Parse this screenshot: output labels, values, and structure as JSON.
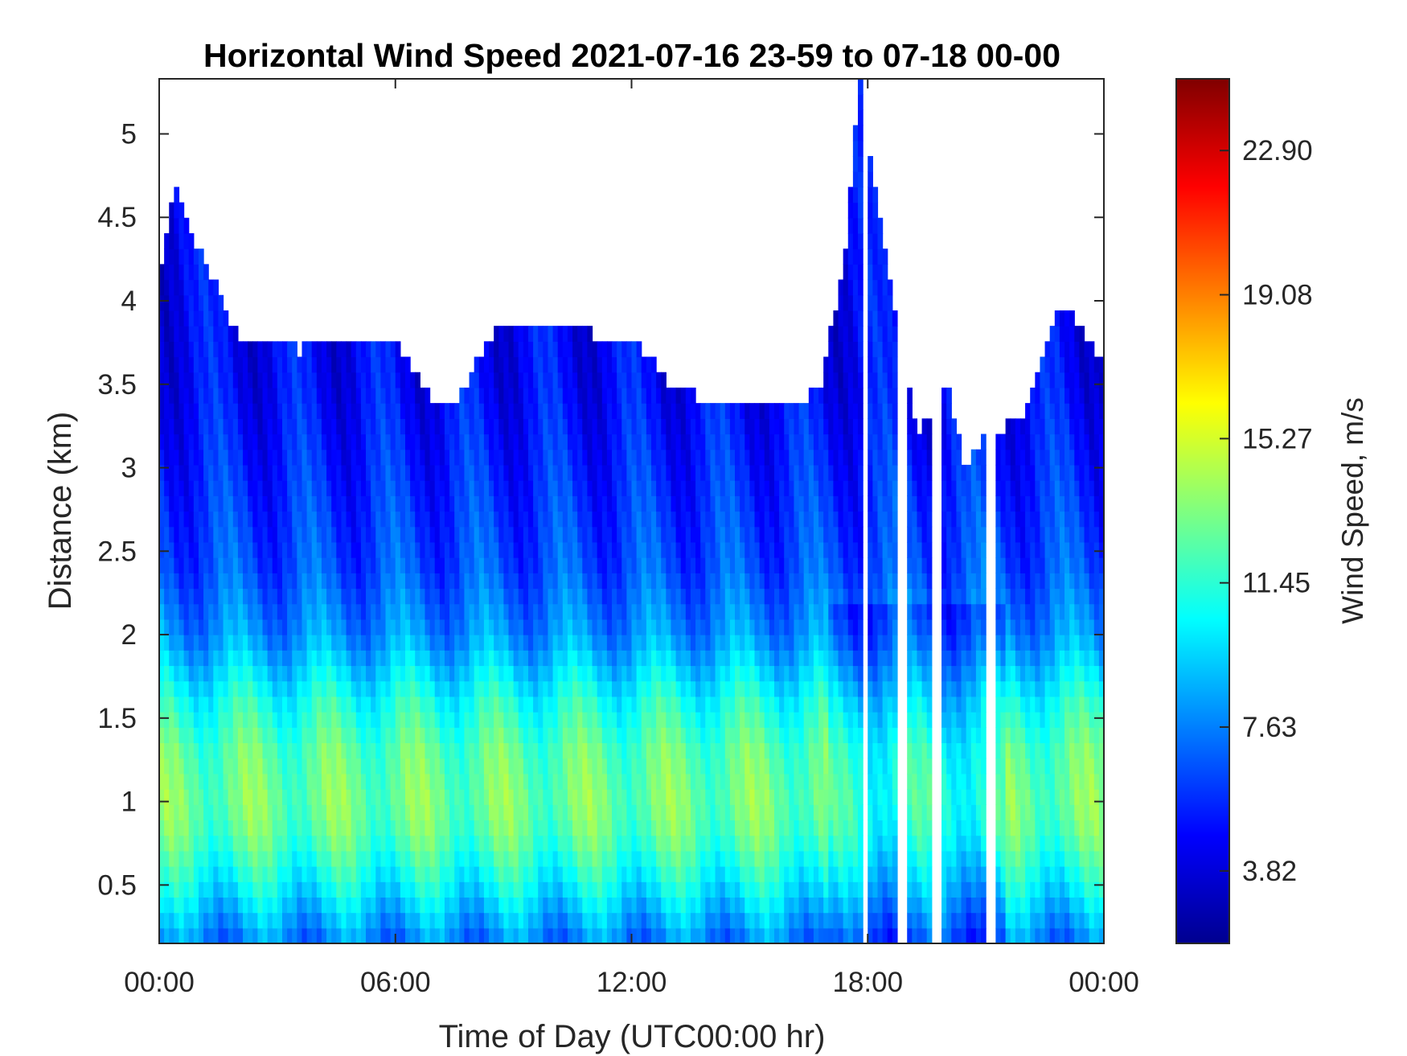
{
  "chart_data": {
    "type": "heatmap",
    "title": "Horizontal Wind Speed 2021-07-16 23-59 to 07-18 00-00",
    "xlabel": "Time of Day (UTC00:00 hr)",
    "ylabel": "Distance (km)",
    "colorbar_label": "Wind Speed, m/s",
    "colormap": "jet",
    "x_unit": "hours",
    "xlim": [
      0,
      24
    ],
    "ylim": [
      0.15,
      5.33
    ],
    "clim": [
      1.9,
      24.8
    ],
    "x_ticks": [
      0,
      6,
      12,
      18,
      24
    ],
    "x_tick_labels": [
      "00:00",
      "06:00",
      "12:00",
      "18:00",
      "00:00"
    ],
    "y_ticks": [
      0.5,
      1,
      1.5,
      2,
      2.5,
      3,
      3.5,
      4,
      4.5,
      5
    ],
    "y_tick_labels": [
      "0.5",
      "1",
      "1.5",
      "2",
      "2.5",
      "3",
      "3.5",
      "4",
      "4.5",
      "5"
    ],
    "colorbar_ticks": [
      3.82,
      7.63,
      11.45,
      15.27,
      19.08,
      22.9
    ],
    "colorbar_tick_labels": [
      "3.82",
      "7.63",
      "11.45",
      "15.27",
      "19.08",
      "22.90"
    ],
    "data_top_km": [
      [
        0.0,
        4.1
      ],
      [
        0.4,
        4.7
      ],
      [
        1.0,
        4.3
      ],
      [
        1.6,
        4.0
      ],
      [
        2.0,
        3.8
      ],
      [
        3.0,
        3.8
      ],
      [
        3.5,
        3.7
      ],
      [
        4.5,
        3.8
      ],
      [
        5.5,
        3.8
      ],
      [
        6.2,
        3.7
      ],
      [
        7.0,
        3.4
      ],
      [
        7.5,
        3.4
      ],
      [
        8.5,
        3.8
      ],
      [
        10.0,
        3.9
      ],
      [
        11.0,
        3.8
      ],
      [
        12.0,
        3.8
      ],
      [
        13.0,
        3.5
      ],
      [
        14.0,
        3.4
      ],
      [
        15.5,
        3.35
      ],
      [
        16.0,
        3.35
      ],
      [
        16.8,
        3.5
      ],
      [
        17.4,
        4.2
      ],
      [
        17.8,
        5.33
      ],
      [
        18.5,
        4.2
      ],
      [
        19.3,
        3.2
      ],
      [
        20.0,
        3.5
      ],
      [
        20.5,
        3.0
      ],
      [
        21.0,
        3.2
      ],
      [
        22.0,
        3.3
      ],
      [
        22.6,
        3.8
      ],
      [
        23.0,
        4.0
      ],
      [
        23.5,
        3.8
      ],
      [
        24.0,
        3.6
      ]
    ],
    "wind_speed_profile": [
      [
        0.15,
        7.5
      ],
      [
        0.5,
        10.5
      ],
      [
        0.8,
        12.5
      ],
      [
        1.0,
        13.0
      ],
      [
        1.3,
        12.5
      ],
      [
        1.6,
        11.0
      ],
      [
        1.8,
        9.5
      ],
      [
        2.0,
        8.0
      ],
      [
        2.4,
        6.5
      ],
      [
        3.0,
        5.5
      ],
      [
        3.5,
        4.8
      ],
      [
        4.5,
        4.5
      ]
    ],
    "data_gaps": [
      {
        "x_start": 17.9,
        "x_end": 18.05,
        "y_below": 5.33
      },
      {
        "x_start": 18.7,
        "x_end": 18.95,
        "y_below": 5.33
      },
      {
        "x_start": 19.6,
        "x_end": 19.85,
        "y_below": 5.33
      },
      {
        "x_start": 21.05,
        "x_end": 21.2,
        "y_below": 5.33
      }
    ]
  }
}
